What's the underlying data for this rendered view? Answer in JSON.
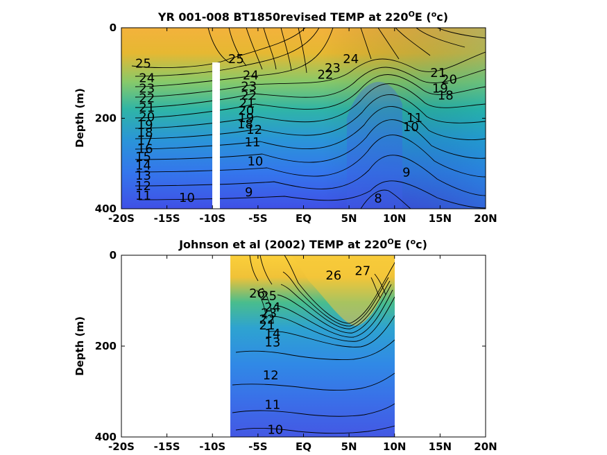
{
  "chart_data": [
    {
      "type": "contour",
      "title": "YR 001-008 BT1850revised TEMP at 220°E (°c)",
      "title_parts": [
        "YR 001-008 BT1850revised TEMP at 220",
        "O",
        "E (",
        "o",
        "c)"
      ],
      "ylabel": "Depth (m)",
      "xlim": [
        -20,
        20
      ],
      "ylim": [
        0,
        400
      ],
      "y_reversed": true,
      "x_ticks": [
        -20,
        -15,
        -10,
        -5,
        0,
        5,
        10,
        15,
        20
      ],
      "x_tick_labels": [
        "-20S",
        "-15S",
        "-10S",
        "-5S",
        "EQ",
        "5N",
        "10N",
        "15N",
        "20N"
      ],
      "y_ticks": [
        0,
        200,
        400
      ],
      "y_tick_labels": [
        "0",
        "200",
        "400"
      ],
      "data_extent": [
        -20,
        20
      ],
      "mask_column": [
        -10,
        80
      ],
      "contour_labels": [
        {
          "text": "25",
          "x": -17.6,
          "y": 80
        },
        {
          "text": "24",
          "x": -17.2,
          "y": 112
        },
        {
          "text": "23",
          "x": -17.2,
          "y": 135
        },
        {
          "text": "22",
          "x": -17.2,
          "y": 156
        },
        {
          "text": "21",
          "x": -17.2,
          "y": 177
        },
        {
          "text": "20",
          "x": -17.2,
          "y": 198
        },
        {
          "text": "19",
          "x": -17.4,
          "y": 215
        },
        {
          "text": "18",
          "x": -17.4,
          "y": 232
        },
        {
          "text": "17",
          "x": -17.4,
          "y": 250
        },
        {
          "text": "16",
          "x": -17.4,
          "y": 268
        },
        {
          "text": "15",
          "x": -17.6,
          "y": 286
        },
        {
          "text": "14",
          "x": -17.6,
          "y": 305
        },
        {
          "text": "13",
          "x": -17.6,
          "y": 327
        },
        {
          "text": "12",
          "x": -17.6,
          "y": 350
        },
        {
          "text": "11",
          "x": -17.6,
          "y": 372
        },
        {
          "text": "10",
          "x": -12.8,
          "y": 376
        },
        {
          "text": "9",
          "x": -6.0,
          "y": 364
        },
        {
          "text": "8",
          "x": 8.2,
          "y": 378
        },
        {
          "text": "9",
          "x": 11.3,
          "y": 320
        },
        {
          "text": "10",
          "x": -5.3,
          "y": 296
        },
        {
          "text": "11",
          "x": -5.6,
          "y": 254
        },
        {
          "text": "12",
          "x": -5.4,
          "y": 226
        },
        {
          "text": "25",
          "x": -7.4,
          "y": 70
        },
        {
          "text": "24",
          "x": -5.8,
          "y": 106
        },
        {
          "text": "23",
          "x": -6.0,
          "y": 130
        },
        {
          "text": "22",
          "x": -6.0,
          "y": 150
        },
        {
          "text": "21",
          "x": -6.2,
          "y": 168
        },
        {
          "text": "20",
          "x": -6.3,
          "y": 184
        },
        {
          "text": "19",
          "x": -6.3,
          "y": 200
        },
        {
          "text": "18",
          "x": -6.4,
          "y": 214
        },
        {
          "text": "24",
          "x": 5.2,
          "y": 70
        },
        {
          "text": "23",
          "x": 3.2,
          "y": 90
        },
        {
          "text": "22",
          "x": 2.4,
          "y": 104
        },
        {
          "text": "21",
          "x": 14.8,
          "y": 100
        },
        {
          "text": "20",
          "x": 16.0,
          "y": 115
        },
        {
          "text": "19",
          "x": 15.0,
          "y": 135
        },
        {
          "text": "18",
          "x": 15.6,
          "y": 150
        },
        {
          "text": "10",
          "x": 11.8,
          "y": 220
        },
        {
          "text": "11",
          "x": 12.2,
          "y": 200
        }
      ]
    },
    {
      "type": "contour",
      "title": "Johnson et al (2002) TEMP at 220°E (°c)",
      "title_parts": [
        "Johnson et al (2002) TEMP at 220",
        "O",
        "E (",
        "o",
        "c)"
      ],
      "ylabel": "Depth (m)",
      "xlim": [
        -20,
        20
      ],
      "ylim": [
        0,
        400
      ],
      "y_reversed": true,
      "x_ticks": [
        -20,
        -15,
        -10,
        -5,
        0,
        5,
        10,
        15,
        20
      ],
      "x_tick_labels": [
        "-20S",
        "-15S",
        "-10S",
        "-5S",
        "EQ",
        "5N",
        "10N",
        "15N",
        "20N"
      ],
      "y_ticks": [
        0,
        200,
        400
      ],
      "y_tick_labels": [
        "0",
        "200",
        "400"
      ],
      "data_extent": [
        -8,
        10
      ],
      "contour_labels": [
        {
          "text": "27",
          "x": 6.5,
          "y": 35
        },
        {
          "text": "26",
          "x": 3.3,
          "y": 45
        },
        {
          "text": "26",
          "x": -5.1,
          "y": 85
        },
        {
          "text": "25",
          "x": -3.8,
          "y": 90
        },
        {
          "text": "24",
          "x": -3.4,
          "y": 115
        },
        {
          "text": "23",
          "x": -3.8,
          "y": 128
        },
        {
          "text": "22",
          "x": -4.0,
          "y": 142
        },
        {
          "text": "21",
          "x": -4.0,
          "y": 155
        },
        {
          "text": "14",
          "x": -3.4,
          "y": 173
        },
        {
          "text": "13",
          "x": -3.4,
          "y": 192
        },
        {
          "text": "12",
          "x": -3.6,
          "y": 265
        },
        {
          "text": "11",
          "x": -3.4,
          "y": 330
        },
        {
          "text": "10",
          "x": -3.1,
          "y": 385
        }
      ]
    }
  ]
}
